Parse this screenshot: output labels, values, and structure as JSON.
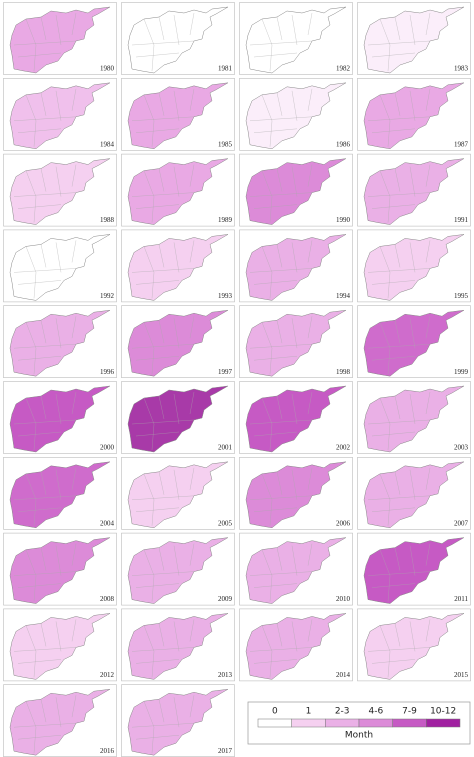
{
  "panels": [
    {
      "year": "1980",
      "color": "#e9a9e4"
    },
    {
      "year": "1981",
      "color": "#ffffff"
    },
    {
      "year": "1982",
      "color": "#ffffff"
    },
    {
      "year": "1983",
      "color": "#fbeefa"
    },
    {
      "year": "1984",
      "color": "#f0c0ec"
    },
    {
      "year": "1985",
      "color": "#e9a9e4"
    },
    {
      "year": "1986",
      "color": "#fbeefa"
    },
    {
      "year": "1987",
      "color": "#e9a9e4"
    },
    {
      "year": "1988",
      "color": "#f5d0f0"
    },
    {
      "year": "1989",
      "color": "#e9a9e4"
    },
    {
      "year": "1990",
      "color": "#dc8bd8"
    },
    {
      "year": "1991",
      "color": "#eab0e6"
    },
    {
      "year": "1992",
      "color": "#ffffff"
    },
    {
      "year": "1993",
      "color": "#f5d0f0"
    },
    {
      "year": "1994",
      "color": "#eab0e6"
    },
    {
      "year": "1995",
      "color": "#f5d0f0"
    },
    {
      "year": "1996",
      "color": "#eab0e6"
    },
    {
      "year": "1997",
      "color": "#dc8bd8"
    },
    {
      "year": "1998",
      "color": "#eab0e6"
    },
    {
      "year": "1999",
      "color": "#cf6ccc"
    },
    {
      "year": "2000",
      "color": "#c65ac4"
    },
    {
      "year": "2001",
      "color": "#a83aa8"
    },
    {
      "year": "2002",
      "color": "#c65ac4"
    },
    {
      "year": "2003",
      "color": "#eab0e6"
    },
    {
      "year": "2004",
      "color": "#cf6ccc"
    },
    {
      "year": "2005",
      "color": "#f5d0f0"
    },
    {
      "year": "2006",
      "color": "#dc8bd8"
    },
    {
      "year": "2007",
      "color": "#eab0e6"
    },
    {
      "year": "2008",
      "color": "#dc8bd8"
    },
    {
      "year": "2009",
      "color": "#eab0e6"
    },
    {
      "year": "2010",
      "color": "#eab0e6"
    },
    {
      "year": "2011",
      "color": "#c65ac4"
    },
    {
      "year": "2012",
      "color": "#f5d0f0"
    },
    {
      "year": "2013",
      "color": "#eab0e6"
    },
    {
      "year": "2014",
      "color": "#eab0e6"
    },
    {
      "year": "2015",
      "color": "#f5d0f0"
    },
    {
      "year": "2016",
      "color": "#eab0e6"
    },
    {
      "year": "2017",
      "color": "#eab0e6"
    }
  ],
  "legend": {
    "title": "Month",
    "classes": [
      {
        "label": "0",
        "color": "#ffffff"
      },
      {
        "label": "1",
        "color": "#f5d0f0"
      },
      {
        "label": "2-3",
        "color": "#eab0e6"
      },
      {
        "label": "4-6",
        "color": "#dc8bd8"
      },
      {
        "label": "7-9",
        "color": "#c65ac4"
      },
      {
        "label": "10-12",
        "color": "#a020a0"
      }
    ]
  }
}
